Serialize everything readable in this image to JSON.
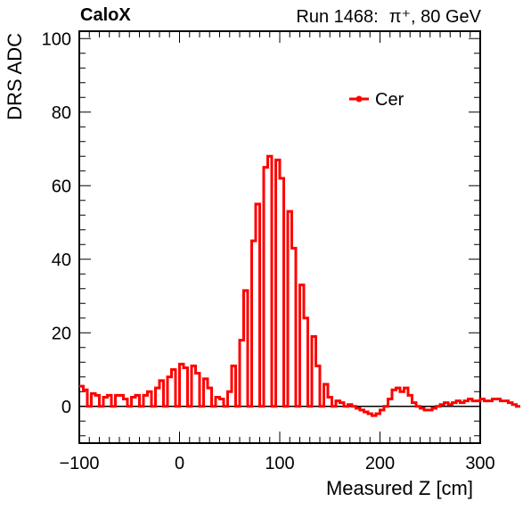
{
  "header": {
    "left": "CaloX",
    "run": "Run 1468:",
    "particle": "π⁺, 80 GeV"
  },
  "chart_data": {
    "type": "line",
    "style": "step-histogram",
    "xlabel": "Measured Z [cm]",
    "ylabel": "DRS ADC",
    "xlim": [
      -100,
      300
    ],
    "ylim": [
      -10,
      102
    ],
    "x_ticks": [
      "−100",
      "0",
      "100",
      "200",
      "300"
    ],
    "y_ticks": [
      "0",
      "20",
      "40",
      "60",
      "80",
      "100"
    ],
    "y_tick_values": [
      0,
      20,
      40,
      60,
      80,
      100
    ],
    "x_tick_values": [
      -100,
      0,
      100,
      200,
      300
    ],
    "bin_width": 4,
    "grid": false,
    "legend_position": "top-right",
    "color": "#ff0000",
    "zero_line": true,
    "series": [
      {
        "name": "Cer",
        "x_start": -100,
        "values": [
          5.5,
          4.5,
          0,
          3.5,
          3,
          0,
          2.5,
          3,
          0,
          3,
          3,
          2,
          0,
          2.5,
          3,
          0,
          3,
          4,
          0,
          5,
          7,
          0,
          8,
          10,
          0,
          11.5,
          10.5,
          0,
          11,
          9,
          0,
          7.5,
          5,
          0,
          2.5,
          2,
          0,
          4,
          11,
          0,
          18,
          31.5,
          0,
          45,
          55,
          0,
          65,
          68,
          0,
          67,
          62,
          0,
          53,
          43,
          0,
          33,
          24,
          0,
          19,
          11,
          0,
          6,
          2.5,
          0,
          1.5,
          1,
          0,
          0.5,
          0,
          -0.5,
          -1,
          -1.5,
          -2,
          -2.5,
          -2,
          -1,
          0,
          2,
          4.5,
          5,
          4,
          5,
          3,
          1,
          0,
          -0.5,
          -1,
          -1,
          -0.5,
          0,
          0.5,
          1,
          0.5,
          1,
          1.5,
          1,
          1.5,
          2,
          1.5,
          1.5,
          2,
          1.5,
          1.5,
          2,
          2,
          1.5,
          1.5,
          1,
          0.5,
          0
        ]
      }
    ]
  }
}
